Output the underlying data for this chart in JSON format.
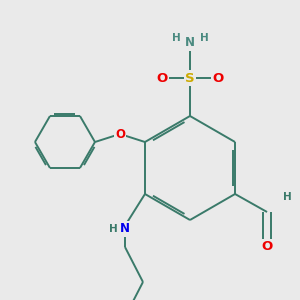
{
  "bg_color": "#eaeaea",
  "bond_color": "#3a7a6a",
  "bond_width": 1.4,
  "atom_colors": {
    "C": "#3a7a6a",
    "H": "#3a7a6a",
    "N_amine": "#0000ee",
    "N_sulfonamide": "#4a8a80",
    "H_sulfonamide": "#4a8a80",
    "O": "#ee0000",
    "S": "#ccaa00"
  },
  "font_size": 8.5,
  "small_font": 7.5
}
